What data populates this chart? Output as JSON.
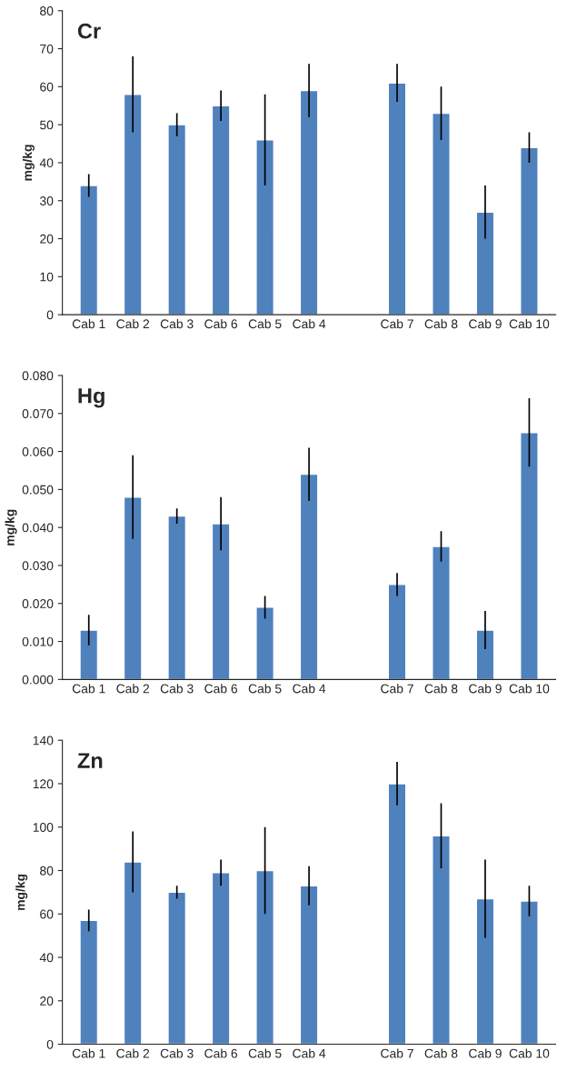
{
  "chart_data": [
    {
      "type": "bar",
      "title": "Cr",
      "ylabel": "mg/kg",
      "categories": [
        "Cab 1",
        "Cab 2",
        "Cab 3",
        "Cab 6",
        "Cab 5",
        "Cab 4",
        null,
        "Cab 7",
        "Cab 8",
        "Cab 9",
        "Cab 10"
      ],
      "series": [
        {
          "color": "#4f81bd",
          "values": [
            34,
            58,
            50,
            55,
            46,
            59,
            null,
            61,
            53,
            27,
            44
          ],
          "errors": [
            3,
            10,
            3,
            4,
            12,
            7,
            null,
            5,
            7,
            7,
            4
          ]
        }
      ],
      "ylim": [
        0,
        80
      ],
      "yticks": [
        0,
        10,
        20,
        30,
        40,
        50,
        60,
        70,
        80
      ],
      "grid": false,
      "legend": false
    },
    {
      "type": "bar",
      "title": "Hg",
      "ylabel": "mg/kg",
      "categories": [
        "Cab 1",
        "Cab 2",
        "Cab 3",
        "Cab 6",
        "Cab 5",
        "Cab 4",
        null,
        "Cab 7",
        "Cab 8",
        "Cab 9",
        "Cab 10"
      ],
      "series": [
        {
          "color": "#4f81bd",
          "values": [
            0.013,
            0.048,
            0.043,
            0.041,
            0.019,
            0.054,
            null,
            0.025,
            0.035,
            0.013,
            0.065
          ],
          "errors": [
            0.004,
            0.011,
            0.002,
            0.007,
            0.003,
            0.007,
            null,
            0.003,
            0.004,
            0.005,
            0.009
          ]
        }
      ],
      "ylim": [
        0,
        0.08
      ],
      "yticks": [
        {
          "value": 0,
          "label": "0.000"
        },
        {
          "value": 0.01,
          "label": "0.010"
        },
        {
          "value": 0.02,
          "label": "0.020"
        },
        {
          "value": 0.03,
          "label": "0.030"
        },
        {
          "value": 0.04,
          "label": "0.040"
        },
        {
          "value": 0.05,
          "label": "0.050"
        },
        {
          "value": 0.06,
          "label": "0.060"
        },
        {
          "value": 0.07,
          "label": "0.070"
        },
        {
          "value": 0.08,
          "label": "0.080"
        }
      ],
      "grid": false,
      "legend": false
    },
    {
      "type": "bar",
      "title": "Zn",
      "ylabel": "mg/kg",
      "categories": [
        "Cab 1",
        "Cab 2",
        "Cab 3",
        "Cab 6",
        "Cab 5",
        "Cab 4",
        null,
        "Cab 7",
        "Cab 8",
        "Cab 9",
        "Cab 10"
      ],
      "series": [
        {
          "color": "#4f81bd",
          "values": [
            57,
            84,
            70,
            79,
            80,
            73,
            null,
            120,
            96,
            67,
            66
          ],
          "errors": [
            5,
            14,
            3,
            6,
            20,
            9,
            null,
            10,
            15,
            18,
            7
          ]
        }
      ],
      "ylim": [
        0,
        140
      ],
      "yticks": [
        0,
        20,
        40,
        60,
        80,
        100,
        120,
        140
      ],
      "grid": false,
      "legend": false
    }
  ]
}
